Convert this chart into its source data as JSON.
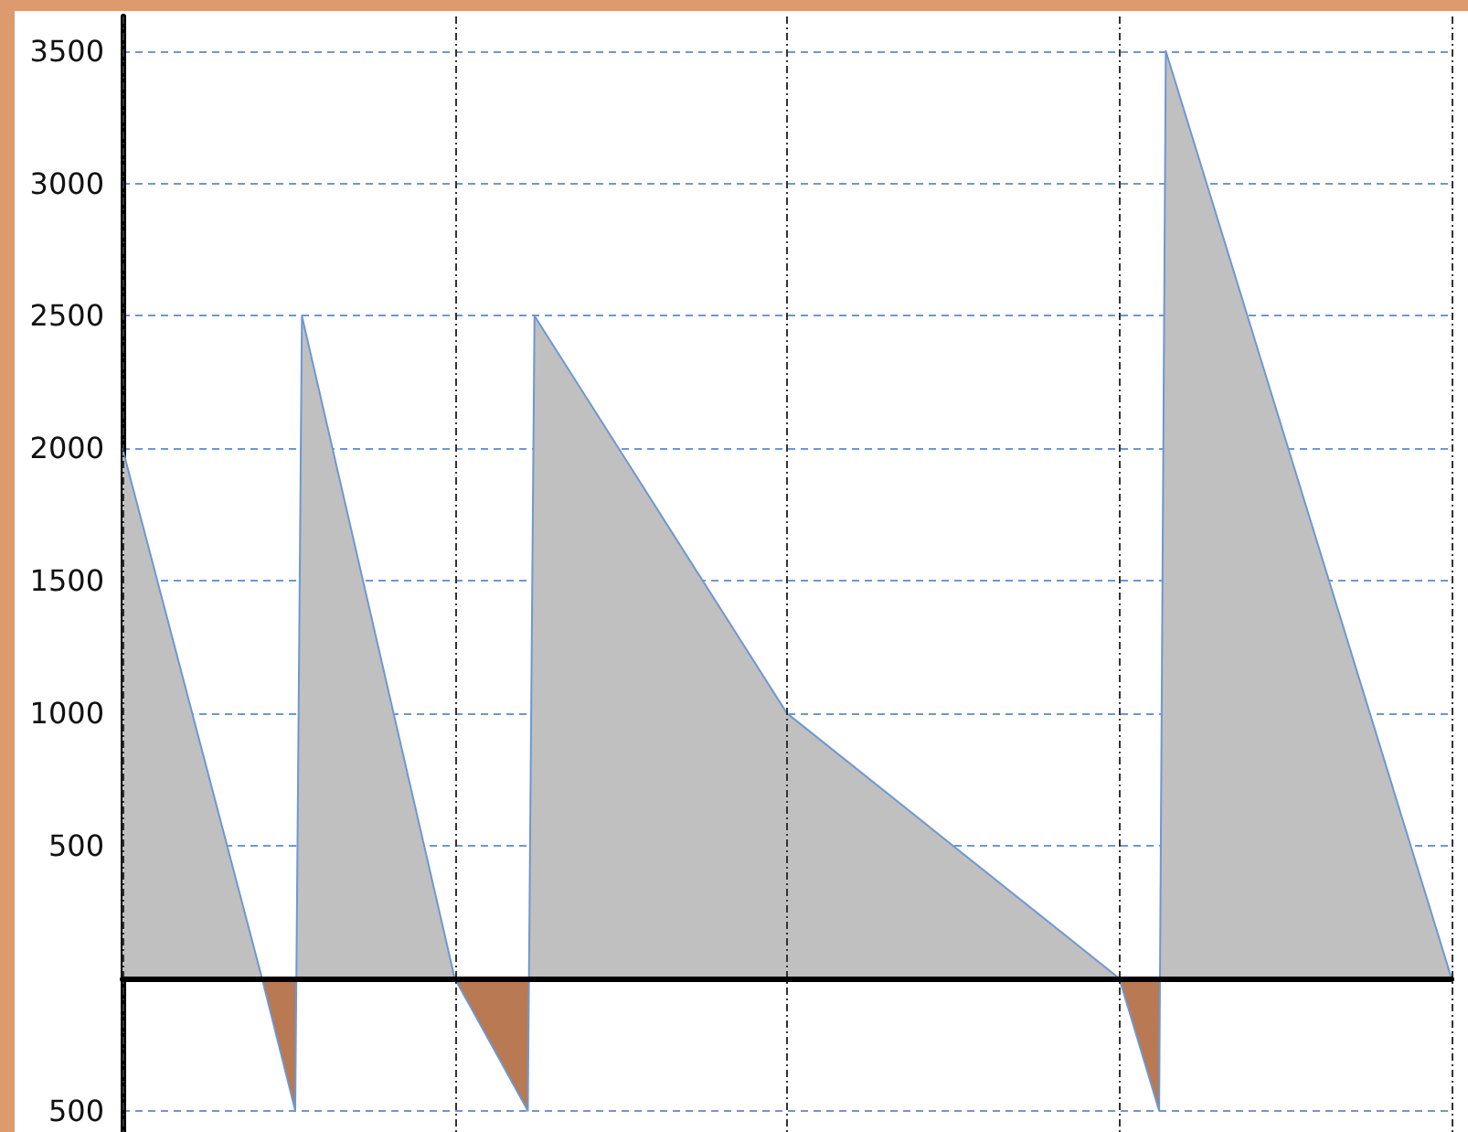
{
  "chart_data": {
    "type": "area",
    "categories": [
      null,
      null,
      null,
      null,
      null,
      null,
      null,
      null,
      null,
      null,
      null,
      null,
      null,
      null,
      null,
      null,
      null,
      null,
      null,
      null,
      null,
      null,
      null,
      null,
      null,
      null,
      null,
      null,
      null,
      null,
      null,
      null,
      null,
      null,
      null,
      null,
      null,
      null,
      null,
      null,
      null,
      null,
      null,
      null,
      null,
      null,
      null,
      null,
      null,
      null,
      null,
      null,
      null,
      null,
      null,
      null,
      null,
      null,
      null,
      null,
      null,
      null,
      null,
      null,
      null,
      null,
      null,
      null,
      null,
      null,
      null,
      null,
      null,
      null,
      null,
      null,
      null,
      null,
      null,
      null,
      null,
      null,
      null,
      null,
      null,
      null,
      null,
      null,
      null,
      null,
      null,
      null,
      null,
      null,
      null,
      null,
      null,
      null,
      null,
      null,
      null,
      null,
      null,
      null,
      null,
      null,
      null,
      null,
      null,
      null,
      null,
      null,
      null,
      null,
      null,
      null,
      null,
      null,
      null,
      null,
      null,
      null,
      null,
      null,
      null,
      null,
      null,
      null,
      null,
      null,
      null,
      null,
      null,
      null,
      null,
      null,
      null,
      null,
      null,
      null,
      null,
      null,
      null,
      null,
      null,
      null,
      null,
      null,
      null,
      null,
      null,
      null,
      null,
      null,
      null,
      null,
      null,
      null,
      null,
      null,
      null,
      null,
      null,
      null,
      null,
      null,
      null,
      null,
      null,
      null,
      null,
      null,
      null,
      null,
      null,
      null,
      null,
      null,
      null,
      null,
      null,
      null,
      null,
      null,
      null,
      null,
      null,
      null,
      null,
      null,
      null,
      null,
      null,
      null,
      null,
      null,
      null,
      null,
      null,
      null,
      null
    ],
    "series": [
      {
        "color": "#c0c0c0",
        "values": [
          2000,
          null,
          null,
          null,
          null,
          null,
          null,
          null,
          null,
          null,
          null,
          null,
          null,
          null,
          null,
          null,
          null,
          null,
          null,
          null,
          null,
          0,
          null,
          null,
          null,
          null,
          -500,
          2500,
          null,
          null,
          null,
          null,
          null,
          null,
          null,
          null,
          null,
          null,
          null,
          null,
          null,
          null,
          null,
          null,
          null,
          null,
          null,
          null,
          null,
          null,
          0,
          null,
          null,
          null,
          null,
          null,
          null,
          null,
          null,
          null,
          null,
          -500,
          2500,
          null,
          null,
          null,
          null,
          null,
          null,
          null,
          null,
          null,
          null,
          null,
          null,
          null,
          null,
          null,
          null,
          null,
          null,
          null,
          null,
          null,
          null,
          null,
          null,
          null,
          null,
          null,
          null,
          null,
          null,
          null,
          null,
          null,
          null,
          null,
          null,
          null,
          1000,
          null,
          null,
          null,
          null,
          null,
          null,
          null,
          null,
          null,
          null,
          null,
          null,
          null,
          null,
          null,
          null,
          null,
          null,
          null,
          null,
          null,
          null,
          null,
          null,
          null,
          null,
          null,
          null,
          null,
          null,
          null,
          null,
          null,
          null,
          null,
          null,
          null,
          null,
          null,
          null,
          null,
          null,
          null,
          null,
          null,
          null,
          null,
          null,
          null,
          0,
          null,
          null,
          null,
          null,
          null,
          -500,
          3500,
          null,
          null,
          null,
          null,
          null,
          null,
          null,
          null,
          null,
          null,
          null,
          null,
          null,
          null,
          null,
          null,
          null,
          null,
          null,
          null,
          null,
          null,
          null,
          null,
          null,
          null,
          null,
          null,
          null,
          null,
          null,
          null,
          null,
          null,
          null,
          null,
          null,
          null,
          null,
          null,
          null,
          null,
          0
        ]
      }
    ],
    "ylim": [
      -580,
      3630
    ],
    "yticks": [
      {
        "value": -500,
        "label": "500"
      },
      500,
      1000,
      1500,
      2000,
      2500,
      3000,
      3500
    ],
    "tick_labels": "y",
    "grid": true
  }
}
